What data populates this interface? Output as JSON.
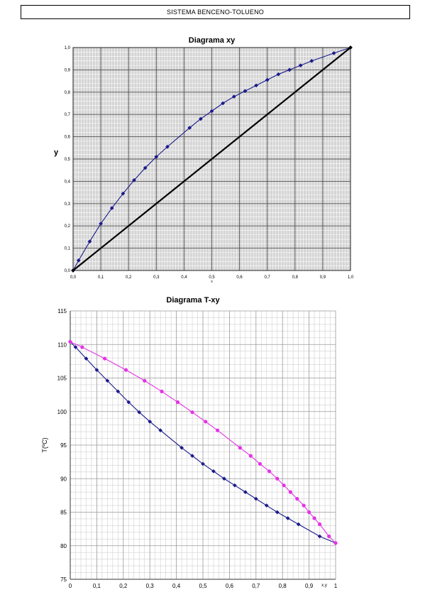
{
  "header": {
    "title": "SISTEMA BENCENO-TOLUENO"
  },
  "chart_data": [
    {
      "type": "line",
      "title": "Diagrama xy",
      "xlabel": "x",
      "ylabel": "y",
      "xlim": [
        0,
        1
      ],
      "ylim": [
        0,
        1
      ],
      "x_ticks": [
        "0,0",
        "0,1",
        "0,2",
        "0,3",
        "0,4",
        "0,5",
        "0,6",
        "0,7",
        "0,8",
        "0,9",
        "1,0"
      ],
      "y_ticks": [
        "0,0",
        "0,1",
        "0,2",
        "0,3",
        "0,4",
        "0,5",
        "0,6",
        "0,7",
        "0,8",
        "0,9",
        "1,0"
      ],
      "grid": true,
      "series": [
        {
          "color": "#1a1a8c",
          "marker": "diamond",
          "x": [
            0,
            0.02,
            0.06,
            0.1,
            0.14,
            0.18,
            0.22,
            0.26,
            0.3,
            0.34,
            0.42,
            0.46,
            0.5,
            0.54,
            0.58,
            0.62,
            0.66,
            0.7,
            0.74,
            0.78,
            0.82,
            0.86,
            0.94,
            1.0
          ],
          "y": [
            0,
            0.045,
            0.13,
            0.21,
            0.28,
            0.345,
            0.405,
            0.46,
            0.51,
            0.555,
            0.64,
            0.68,
            0.715,
            0.75,
            0.78,
            0.805,
            0.83,
            0.855,
            0.88,
            0.9,
            0.92,
            0.94,
            0.975,
            1.0
          ]
        },
        {
          "color": "#000000",
          "marker": "diamond",
          "x": [
            0,
            1
          ],
          "y": [
            0,
            1
          ]
        }
      ]
    },
    {
      "type": "line",
      "title": "Diagrama T-xy",
      "xlabel": "x,y",
      "ylabel": "T(ºC)",
      "xlim": [
        0,
        1
      ],
      "ylim": [
        75,
        115
      ],
      "x_ticks": [
        "0",
        "0,1",
        "0,2",
        "0,3",
        "0,4",
        "0,5",
        "0,6",
        "0,7",
        "0,8",
        "0,9",
        "1"
      ],
      "y_ticks": [
        "75",
        "80",
        "85",
        "90",
        "95",
        "100",
        "105",
        "110",
        "115"
      ],
      "grid": true,
      "series": [
        {
          "color": "#1a1a8c",
          "marker": "diamond",
          "x": [
            0,
            0.02,
            0.06,
            0.1,
            0.14,
            0.18,
            0.22,
            0.26,
            0.3,
            0.34,
            0.42,
            0.46,
            0.5,
            0.54,
            0.58,
            0.62,
            0.66,
            0.7,
            0.74,
            0.78,
            0.82,
            0.86,
            0.94,
            1.0
          ],
          "y": [
            110.4,
            109.6,
            107.9,
            106.2,
            104.6,
            103.0,
            101.4,
            99.9,
            98.5,
            97.2,
            94.6,
            93.4,
            92.2,
            91.1,
            90.0,
            89.0,
            88.0,
            87.0,
            86.0,
            85.0,
            84.1,
            83.2,
            81.4,
            80.4
          ]
        },
        {
          "color": "#e632e6",
          "marker": "circle",
          "x": [
            0,
            0.045,
            0.13,
            0.21,
            0.28,
            0.345,
            0.405,
            0.46,
            0.51,
            0.555,
            0.64,
            0.68,
            0.715,
            0.75,
            0.78,
            0.805,
            0.83,
            0.855,
            0.88,
            0.9,
            0.92,
            0.94,
            0.975,
            1.0
          ],
          "y": [
            110.4,
            109.6,
            107.9,
            106.2,
            104.6,
            103.0,
            101.4,
            99.9,
            98.5,
            97.2,
            94.6,
            93.4,
            92.2,
            91.1,
            90.0,
            89.0,
            88.0,
            87.0,
            86.0,
            85.0,
            84.1,
            83.2,
            81.4,
            80.4
          ]
        }
      ]
    }
  ]
}
